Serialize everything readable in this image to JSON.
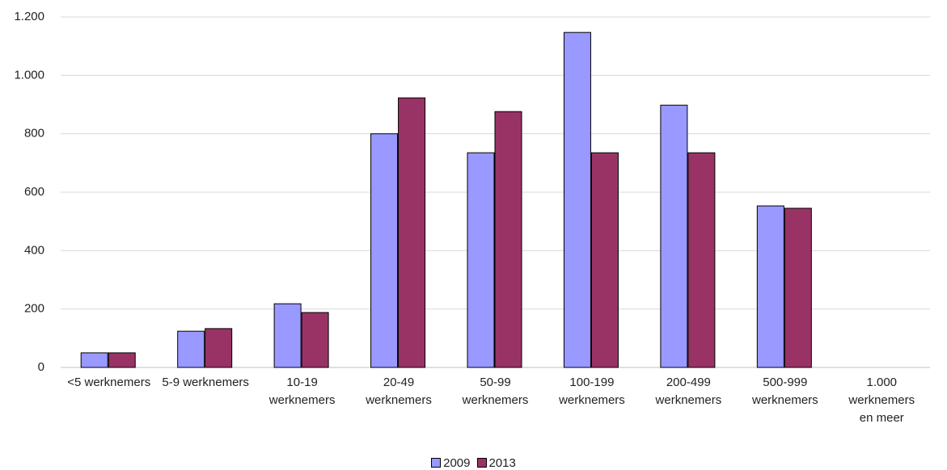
{
  "chart_data": {
    "type": "bar",
    "categories": [
      "<5 werknemers",
      "5-9 werknemers",
      "10-19 werknemers",
      "20-49 werknemers",
      "50-99 werknemers",
      "100-199 werknemers",
      "200-499 werknemers",
      "500-999 werknemers",
      "1.000 werknemers en meer"
    ],
    "series": [
      {
        "name": "2009",
        "color": "#9999ff",
        "values": [
          50,
          124,
          218,
          800,
          735,
          1147,
          898,
          553,
          0
        ]
      },
      {
        "name": "2013",
        "color": "#993366",
        "values": [
          50,
          133,
          188,
          923,
          876,
          735,
          735,
          545,
          0
        ]
      }
    ],
    "ylim": [
      0,
      1200
    ],
    "yticks": [
      0,
      200,
      400,
      600,
      800,
      {
        "value": 1000,
        "label": "1.000"
      },
      {
        "value": 1200,
        "label": "1.200"
      }
    ],
    "grid": true
  }
}
